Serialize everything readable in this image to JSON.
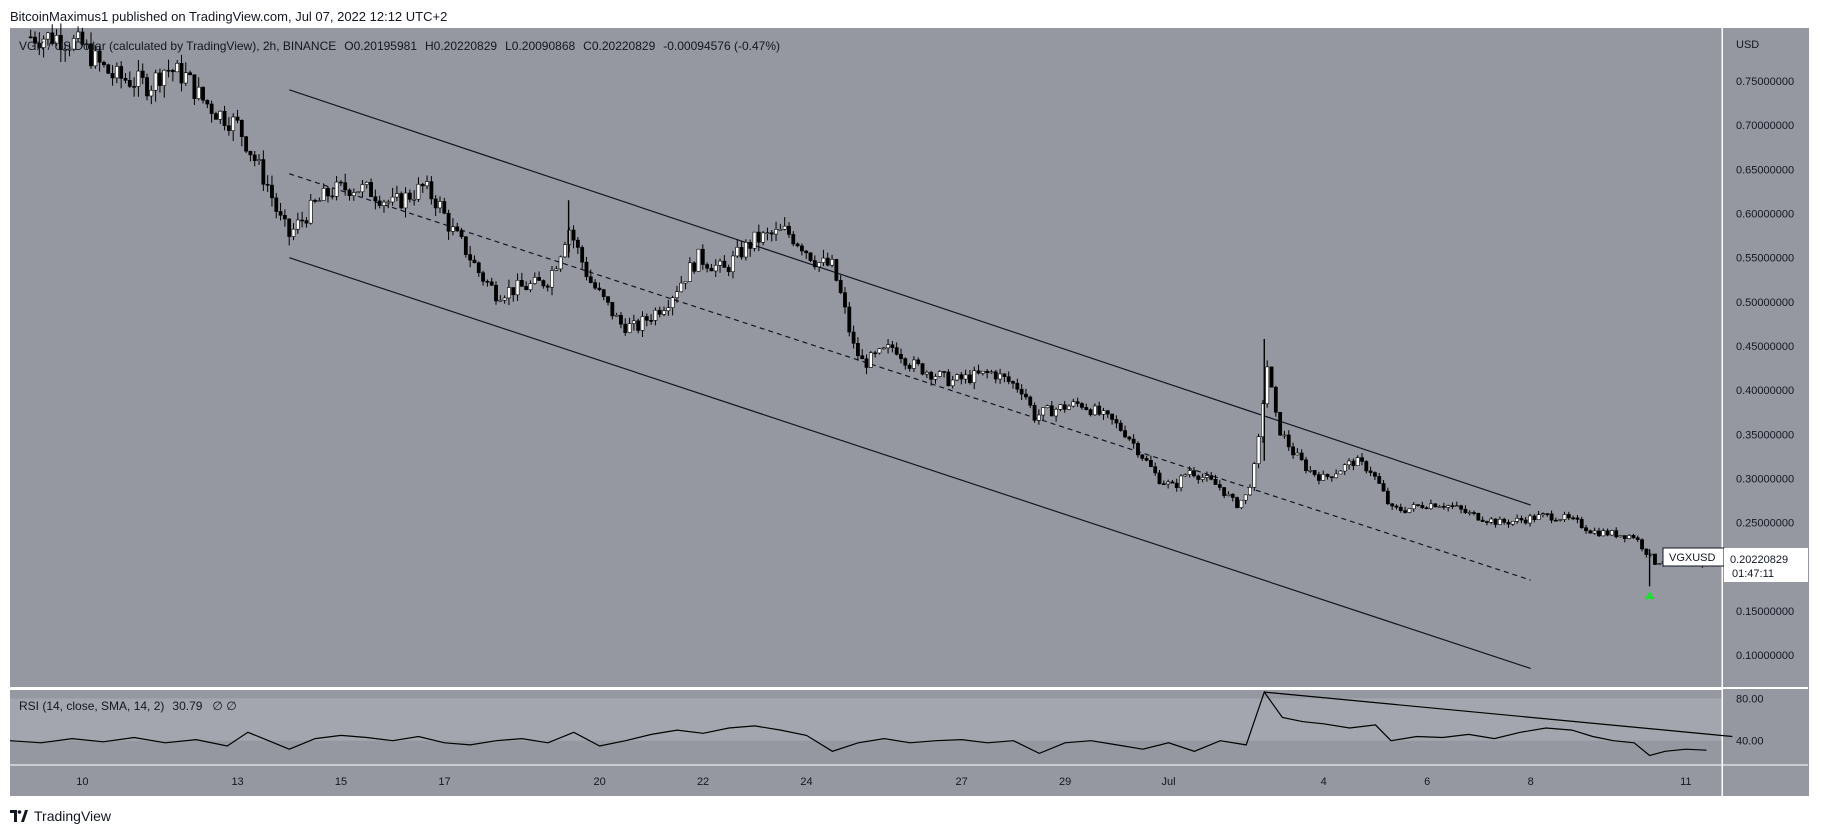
{
  "header": {
    "publisher": "BitcoinMaximus1 published on TradingView.com, Jul 07, 2022 12:12 UTC+2"
  },
  "footer": {
    "brand": "TradingView"
  },
  "chart_data": {
    "type": "candlestick",
    "symbol": "VGX / US Dollar (calculated by TradingView), 2h, BINANCE",
    "ohlc": {
      "o_label": "O",
      "o": "0.20195981",
      "h_label": "H",
      "h": "0.20220829",
      "l_label": "L",
      "l": "0.20090868",
      "c_label": "C",
      "c": "0.20220829",
      "change": "-0.00094576 (-0.47%)"
    },
    "currency": "USD",
    "ticker": "VGXUSD",
    "last_price": "0.20220829",
    "countdown": "01:47:11",
    "ylim": [
      0.064,
      0.81
    ],
    "y_ticks": [
      "0.10000000",
      "0.15000000",
      "0.20000000",
      "0.25000000",
      "0.30000000",
      "0.35000000",
      "0.40000000",
      "0.45000000",
      "0.50000000",
      "0.55000000",
      "0.60000000",
      "0.65000000",
      "0.70000000",
      "0.75000000"
    ],
    "x_ticks": [
      "10",
      "13",
      "15",
      "17",
      "20",
      "22",
      "24",
      "27",
      "29",
      "Jul",
      "4",
      "6",
      "8",
      "11"
    ],
    "x_tick_days": [
      10,
      13,
      15,
      17,
      20,
      22,
      24,
      27,
      29,
      31,
      34,
      36,
      38,
      41
    ],
    "xlim_days": [
      8.6,
      41.7
    ],
    "colors": {
      "background": "#9598a1",
      "up": "#ffffff",
      "down": "#000000",
      "line": "#131722",
      "arrow": "#22dd33",
      "rsi_band": "#a3a6ae"
    },
    "channel": {
      "upper": {
        "x": [
          14,
          38
        ],
        "y": [
          0.74,
          0.27
        ]
      },
      "middle": {
        "x": [
          14,
          38
        ],
        "y": [
          0.645,
          0.185
        ],
        "dashed": true
      },
      "lower": {
        "x": [
          14,
          38
        ],
        "y": [
          0.55,
          0.085
        ]
      }
    },
    "close_path": [
      [
        9.0,
        0.8
      ],
      [
        9.5,
        0.8
      ],
      [
        10.0,
        0.79
      ],
      [
        10.3,
        0.77
      ],
      [
        10.6,
        0.755
      ],
      [
        11.0,
        0.75
      ],
      [
        11.3,
        0.745
      ],
      [
        11.6,
        0.765
      ],
      [
        12.0,
        0.755
      ],
      [
        12.3,
        0.73
      ],
      [
        12.6,
        0.715
      ],
      [
        13.0,
        0.7
      ],
      [
        13.3,
        0.665
      ],
      [
        13.6,
        0.63
      ],
      [
        13.8,
        0.595
      ],
      [
        14.0,
        0.575
      ],
      [
        14.2,
        0.59
      ],
      [
        14.5,
        0.61
      ],
      [
        14.8,
        0.625
      ],
      [
        15.2,
        0.63
      ],
      [
        15.6,
        0.625
      ],
      [
        16.0,
        0.61
      ],
      [
        16.3,
        0.62
      ],
      [
        16.6,
        0.63
      ],
      [
        16.9,
        0.61
      ],
      [
        17.1,
        0.585
      ],
      [
        17.4,
        0.56
      ],
      [
        17.7,
        0.53
      ],
      [
        18.0,
        0.51
      ],
      [
        18.4,
        0.515
      ],
      [
        18.8,
        0.52
      ],
      [
        19.0,
        0.525
      ],
      [
        19.2,
        0.55
      ],
      [
        19.4,
        0.585
      ],
      [
        19.6,
        0.555
      ],
      [
        19.8,
        0.525
      ],
      [
        20.1,
        0.5
      ],
      [
        20.4,
        0.475
      ],
      [
        20.7,
        0.47
      ],
      [
        21.0,
        0.485
      ],
      [
        21.3,
        0.5
      ],
      [
        21.6,
        0.525
      ],
      [
        21.9,
        0.55
      ],
      [
        22.1,
        0.545
      ],
      [
        22.4,
        0.535
      ],
      [
        22.7,
        0.555
      ],
      [
        23.0,
        0.57
      ],
      [
        23.3,
        0.575
      ],
      [
        23.6,
        0.58
      ],
      [
        23.9,
        0.565
      ],
      [
        24.2,
        0.545
      ],
      [
        24.5,
        0.54
      ],
      [
        24.7,
        0.5
      ],
      [
        24.9,
        0.45
      ],
      [
        25.1,
        0.43
      ],
      [
        25.4,
        0.44
      ],
      [
        25.7,
        0.45
      ],
      [
        26.0,
        0.43
      ],
      [
        26.4,
        0.42
      ],
      [
        26.8,
        0.41
      ],
      [
        27.2,
        0.415
      ],
      [
        27.6,
        0.42
      ],
      [
        27.9,
        0.41
      ],
      [
        28.2,
        0.4
      ],
      [
        28.4,
        0.37
      ],
      [
        28.6,
        0.375
      ],
      [
        28.9,
        0.38
      ],
      [
        29.3,
        0.385
      ],
      [
        29.6,
        0.375
      ],
      [
        29.9,
        0.365
      ],
      [
        30.2,
        0.35
      ],
      [
        30.5,
        0.325
      ],
      [
        30.8,
        0.3
      ],
      [
        31.1,
        0.29
      ],
      [
        31.4,
        0.31
      ],
      [
        31.7,
        0.3
      ],
      [
        32.0,
        0.29
      ],
      [
        32.3,
        0.27
      ],
      [
        32.5,
        0.28
      ],
      [
        32.7,
        0.32
      ],
      [
        32.9,
        0.43
      ],
      [
        33.1,
        0.36
      ],
      [
        33.4,
        0.33
      ],
      [
        33.7,
        0.31
      ],
      [
        34.0,
        0.3
      ],
      [
        34.3,
        0.31
      ],
      [
        34.6,
        0.32
      ],
      [
        34.9,
        0.31
      ],
      [
        35.1,
        0.29
      ],
      [
        35.3,
        0.265
      ],
      [
        35.6,
        0.265
      ],
      [
        35.9,
        0.27
      ],
      [
        36.2,
        0.272
      ],
      [
        36.5,
        0.268
      ],
      [
        36.8,
        0.26
      ],
      [
        37.1,
        0.255
      ],
      [
        37.4,
        0.25
      ],
      [
        37.7,
        0.252
      ],
      [
        38.0,
        0.255
      ],
      [
        38.3,
        0.258
      ],
      [
        38.6,
        0.256
      ],
      [
        38.9,
        0.25
      ],
      [
        39.2,
        0.24
      ],
      [
        39.5,
        0.238
      ],
      [
        39.8,
        0.236
      ],
      [
        40.0,
        0.235
      ],
      [
        40.2,
        0.22
      ],
      [
        40.4,
        0.205
      ],
      [
        40.6,
        0.208
      ],
      [
        40.9,
        0.21
      ],
      [
        41.2,
        0.203
      ],
      [
        41.4,
        0.202
      ]
    ],
    "spikes": [
      {
        "day": 19.4,
        "high": 0.615
      },
      {
        "day": 32.85,
        "high": 0.458
      },
      {
        "day": 40.3,
        "low": 0.178
      }
    ],
    "buy_arrow": {
      "day": 40.3,
      "price": 0.168
    },
    "rsi": {
      "label": "RSI (14, close, SMA, 14, 2)",
      "value": "30.79",
      "extra": "∅ ∅",
      "levels": [
        "80.00",
        "40.00"
      ],
      "level_values": [
        80,
        40
      ],
      "ylim": [
        17,
        88
      ],
      "band": [
        40,
        80
      ],
      "points": [
        [
          8.6,
          40
        ],
        [
          9.2,
          38
        ],
        [
          9.8,
          42
        ],
        [
          10.4,
          39
        ],
        [
          11.0,
          43
        ],
        [
          11.6,
          38
        ],
        [
          12.2,
          41
        ],
        [
          12.8,
          35
        ],
        [
          13.2,
          48
        ],
        [
          13.6,
          40
        ],
        [
          14.0,
          32
        ],
        [
          14.5,
          42
        ],
        [
          15.0,
          45
        ],
        [
          15.5,
          43
        ],
        [
          16.0,
          40
        ],
        [
          16.5,
          44
        ],
        [
          17.0,
          38
        ],
        [
          17.5,
          36
        ],
        [
          18.0,
          40
        ],
        [
          18.5,
          42
        ],
        [
          19.0,
          38
        ],
        [
          19.5,
          48
        ],
        [
          20.0,
          35
        ],
        [
          20.5,
          40
        ],
        [
          21.0,
          46
        ],
        [
          21.5,
          50
        ],
        [
          22.0,
          47
        ],
        [
          22.5,
          52
        ],
        [
          23.0,
          54
        ],
        [
          23.5,
          50
        ],
        [
          24.0,
          45
        ],
        [
          24.5,
          30
        ],
        [
          25.0,
          38
        ],
        [
          25.5,
          42
        ],
        [
          26.0,
          38
        ],
        [
          26.5,
          40
        ],
        [
          27.0,
          41
        ],
        [
          27.5,
          38
        ],
        [
          28.0,
          40
        ],
        [
          28.5,
          28
        ],
        [
          29.0,
          38
        ],
        [
          29.5,
          40
        ],
        [
          30.0,
          36
        ],
        [
          30.5,
          32
        ],
        [
          31.0,
          38
        ],
        [
          31.5,
          30
        ],
        [
          32.0,
          40
        ],
        [
          32.5,
          36
        ],
        [
          32.85,
          86
        ],
        [
          33.2,
          62
        ],
        [
          33.6,
          58
        ],
        [
          34.0,
          56
        ],
        [
          34.5,
          52
        ],
        [
          35.0,
          55
        ],
        [
          35.3,
          40
        ],
        [
          35.8,
          44
        ],
        [
          36.3,
          43
        ],
        [
          36.8,
          46
        ],
        [
          37.3,
          42
        ],
        [
          37.8,
          48
        ],
        [
          38.3,
          52
        ],
        [
          38.8,
          50
        ],
        [
          39.2,
          44
        ],
        [
          39.6,
          40
        ],
        [
          40.0,
          38
        ],
        [
          40.3,
          26
        ],
        [
          40.6,
          30
        ],
        [
          41.0,
          32
        ],
        [
          41.4,
          31
        ]
      ],
      "trendline": {
        "x": [
          32.85,
          41.9
        ],
        "y": [
          86,
          44
        ]
      }
    }
  }
}
